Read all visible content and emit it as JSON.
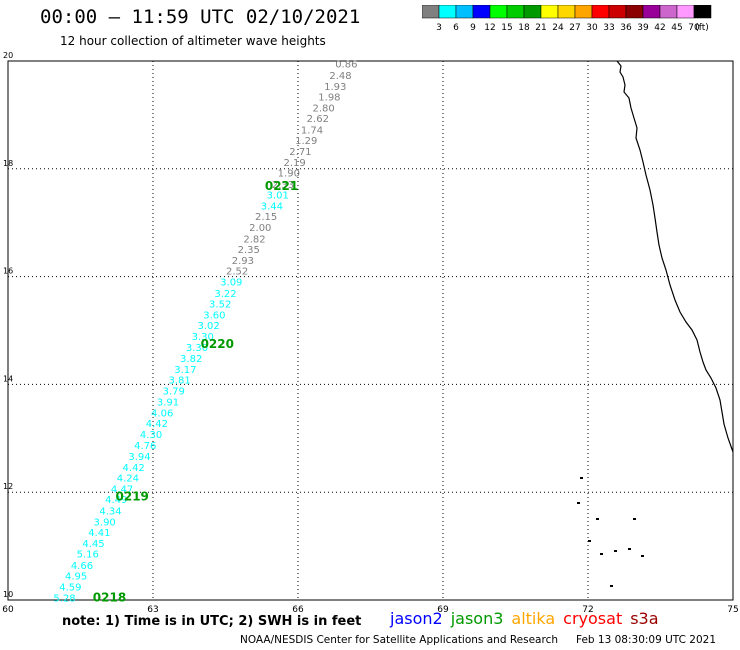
{
  "header": {
    "title": "00:00 – 11:59 UTC 02/10/2021",
    "subtitle": "12 hour collection of altimeter wave heights"
  },
  "colorbar": {
    "colors": [
      "#808080",
      "#00ffff",
      "#00bfff",
      "#0000ff",
      "#00ff00",
      "#00cc00",
      "#009900",
      "#ffff00",
      "#ffd700",
      "#ffa500",
      "#ff0000",
      "#cc0000",
      "#8b0000",
      "#990099",
      "#cc66cc",
      "#ff99ff",
      "#000000"
    ],
    "labels": [
      "3",
      "6",
      "9",
      "12",
      "15",
      "18",
      "21",
      "24",
      "27",
      "30",
      "33",
      "36",
      "39",
      "42",
      "45",
      "70"
    ],
    "unit": "(ft)"
  },
  "footer": {
    "note": "note:  1) Time is in UTC;  2) SWH is in feet",
    "satellites": [
      {
        "name": "jason2",
        "color": "#0000ff"
      },
      {
        "name": "jason3",
        "color": "#009900"
      },
      {
        "name": "altika",
        "color": "#ffa500"
      },
      {
        "name": "cryosat",
        "color": "#ff0000"
      },
      {
        "name": "s3a",
        "color": "#990000"
      }
    ],
    "credit": "NOAA/NESDIS Center for Satellite Applications and Research",
    "timestamp": "Feb 13 08:30:09 UTC 2021"
  },
  "chart_data": {
    "type": "scatter",
    "title": "00:00 – 11:59 UTC 02/10/2021",
    "subtitle": "12 hour collection of altimeter wave heights",
    "xlim": [
      60,
      75
    ],
    "ylim": [
      10,
      20
    ],
    "x_ticks": [
      "60",
      "63",
      "66",
      "69",
      "72",
      "75"
    ],
    "y_ticks": [
      "10",
      "12",
      "14",
      "16",
      "18",
      "20"
    ],
    "grid": true,
    "series": [
      {
        "name": "jason2",
        "points": [
          {
            "x": 61.17,
            "y": 10.05,
            "v": "5.28",
            "c": "#00ffff"
          },
          {
            "x": 61.29,
            "y": 10.25,
            "v": "4.59",
            "c": "#00ffff"
          },
          {
            "x": 61.41,
            "y": 10.45,
            "v": "4.95",
            "c": "#00ffff"
          },
          {
            "x": 61.53,
            "y": 10.65,
            "v": "4.66",
            "c": "#00ffff"
          },
          {
            "x": 61.65,
            "y": 10.86,
            "v": "5.16",
            "c": "#00ffff"
          },
          {
            "x": 61.77,
            "y": 11.06,
            "v": "4.45",
            "c": "#00ffff"
          },
          {
            "x": 61.89,
            "y": 11.26,
            "v": "4.41",
            "c": "#00ffff"
          },
          {
            "x": 62.0,
            "y": 11.46,
            "v": "3.90",
            "c": "#00ffff"
          },
          {
            "x": 62.12,
            "y": 11.66,
            "v": "4.34",
            "c": "#00ffff"
          },
          {
            "x": 62.24,
            "y": 11.87,
            "v": "4.49",
            "c": "#00ffff"
          },
          {
            "x": 62.36,
            "y": 12.07,
            "v": "4.47",
            "c": "#00ffff"
          },
          {
            "x": 62.48,
            "y": 12.27,
            "v": "4.24",
            "c": "#00ffff"
          },
          {
            "x": 62.6,
            "y": 12.47,
            "v": "4.42",
            "c": "#00ffff"
          },
          {
            "x": 62.72,
            "y": 12.67,
            "v": "3.94",
            "c": "#00ffff"
          },
          {
            "x": 62.84,
            "y": 12.88,
            "v": "4.76",
            "c": "#00ffff"
          },
          {
            "x": 62.96,
            "y": 13.08,
            "v": "4.30",
            "c": "#00ffff"
          },
          {
            "x": 63.08,
            "y": 13.28,
            "v": "4.42",
            "c": "#00ffff"
          },
          {
            "x": 63.19,
            "y": 13.48,
            "v": "4.06",
            "c": "#00ffff"
          },
          {
            "x": 63.31,
            "y": 13.68,
            "v": "3.91",
            "c": "#00ffff"
          },
          {
            "x": 63.43,
            "y": 13.89,
            "v": "3.79",
            "c": "#00ffff"
          },
          {
            "x": 63.55,
            "y": 14.09,
            "v": "3.81",
            "c": "#00ffff"
          },
          {
            "x": 63.67,
            "y": 14.29,
            "v": "3.17",
            "c": "#00ffff"
          },
          {
            "x": 63.79,
            "y": 14.49,
            "v": "3.82",
            "c": "#00ffff"
          },
          {
            "x": 63.91,
            "y": 14.69,
            "v": "3.30",
            "c": "#00ffff"
          },
          {
            "x": 64.03,
            "y": 14.9,
            "v": "3.30",
            "c": "#00ffff"
          },
          {
            "x": 64.15,
            "y": 15.1,
            "v": "3.02",
            "c": "#00ffff"
          },
          {
            "x": 64.27,
            "y": 15.3,
            "v": "3.60",
            "c": "#00ffff"
          },
          {
            "x": 64.39,
            "y": 15.5,
            "v": "3.52",
            "c": "#00ffff"
          },
          {
            "x": 64.5,
            "y": 15.7,
            "v": "3.22",
            "c": "#00ffff"
          },
          {
            "x": 64.62,
            "y": 15.91,
            "v": "3.09",
            "c": "#00ffff"
          },
          {
            "x": 64.74,
            "y": 16.11,
            "v": "2.52",
            "c": "#808080"
          },
          {
            "x": 64.86,
            "y": 16.31,
            "v": "2.93",
            "c": "#808080"
          },
          {
            "x": 64.98,
            "y": 16.51,
            "v": "2.35",
            "c": "#808080"
          },
          {
            "x": 65.1,
            "y": 16.71,
            "v": "2.82",
            "c": "#808080"
          },
          {
            "x": 65.22,
            "y": 16.92,
            "v": "2.00",
            "c": "#808080"
          },
          {
            "x": 65.34,
            "y": 17.12,
            "v": "2.15",
            "c": "#808080"
          },
          {
            "x": 65.46,
            "y": 17.32,
            "v": "3.44",
            "c": "#00ffff"
          },
          {
            "x": 65.58,
            "y": 17.52,
            "v": "3.01",
            "c": "#00ffff"
          },
          {
            "x": 65.69,
            "y": 17.72,
            "v": "2.33",
            "c": "#808080"
          },
          {
            "x": 65.81,
            "y": 17.93,
            "v": "1.90",
            "c": "#808080"
          },
          {
            "x": 65.93,
            "y": 18.13,
            "v": "2.19",
            "c": "#808080"
          },
          {
            "x": 66.05,
            "y": 18.33,
            "v": "2.71",
            "c": "#808080"
          },
          {
            "x": 66.17,
            "y": 18.53,
            "v": "1.29",
            "c": "#808080"
          },
          {
            "x": 66.29,
            "y": 18.73,
            "v": "1.74",
            "c": "#808080"
          },
          {
            "x": 66.41,
            "y": 18.94,
            "v": "2.62",
            "c": "#808080"
          },
          {
            "x": 66.53,
            "y": 19.14,
            "v": "2.80",
            "c": "#808080"
          },
          {
            "x": 66.65,
            "y": 19.34,
            "v": "1.98",
            "c": "#808080"
          },
          {
            "x": 66.77,
            "y": 19.54,
            "v": "1.93",
            "c": "#808080"
          },
          {
            "x": 66.88,
            "y": 19.74,
            "v": "2.48",
            "c": "#808080"
          },
          {
            "x": 67.0,
            "y": 19.95,
            "v": "0.86",
            "c": "#808080"
          }
        ]
      }
    ],
    "time_labels": [
      {
        "x": 62.1,
        "y": 10.05,
        "text": "0218"
      },
      {
        "x": 62.57,
        "y": 11.92,
        "text": "0219"
      },
      {
        "x": 64.33,
        "y": 14.75,
        "text": "0220"
      },
      {
        "x": 65.66,
        "y": 17.68,
        "text": "0221"
      }
    ],
    "time_label_color": "#009900"
  }
}
